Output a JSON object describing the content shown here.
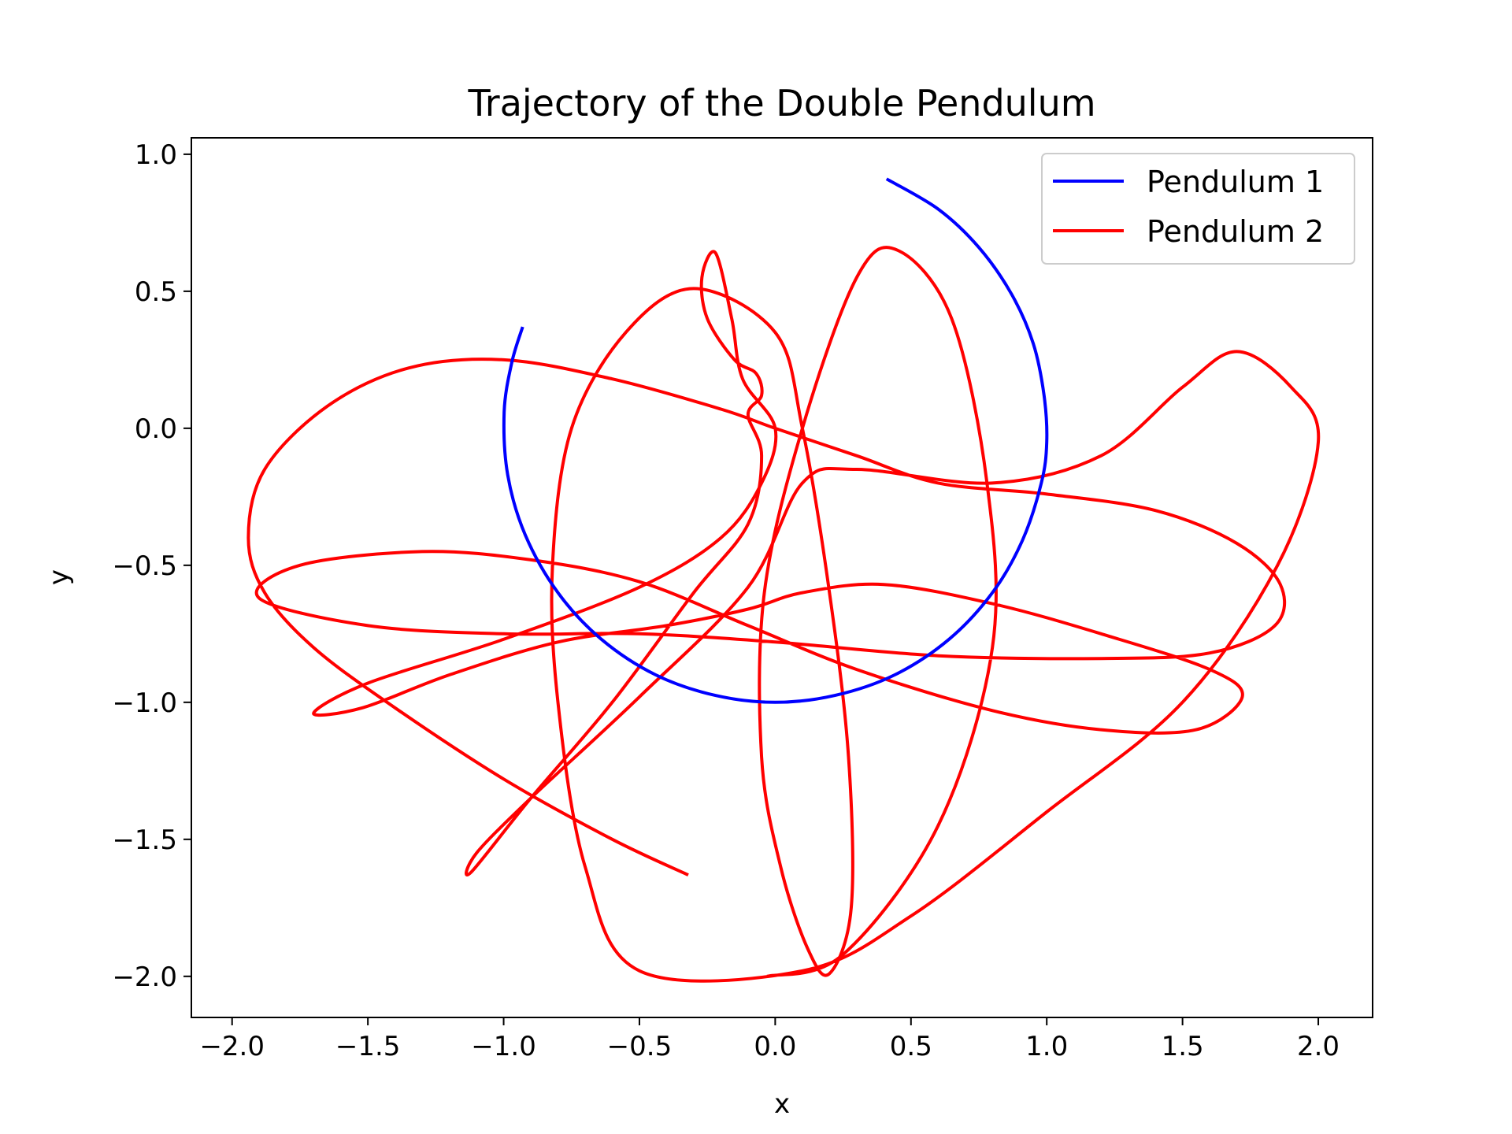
{
  "chart_data": {
    "type": "line",
    "title": "Trajectory of the Double Pendulum",
    "xlabel": "x",
    "ylabel": "y",
    "xlim": [
      -2.15,
      2.2
    ],
    "ylim": [
      -2.15,
      1.06
    ],
    "xticks": [
      -2.0,
      -1.5,
      -1.0,
      -0.5,
      0.0,
      0.5,
      1.0,
      1.5,
      2.0
    ],
    "xtick_labels": [
      "−2.0",
      "−1.5",
      "−1.0",
      "−0.5",
      "0.0",
      "0.5",
      "1.0",
      "1.5",
      "2.0"
    ],
    "yticks": [
      1.0,
      0.5,
      0.0,
      -0.5,
      -1.0,
      -1.5,
      -2.0
    ],
    "ytick_labels": [
      "1.0",
      "0.5",
      "0.0",
      "−0.5",
      "−1.0",
      "−1.5",
      "−2.0"
    ],
    "grid": false,
    "legend": "top-right",
    "series": [
      {
        "name": "Pendulum 1",
        "color": "#0000ff",
        "points": [
          [
            0.41,
            0.91
          ],
          [
            0.6,
            0.8
          ],
          [
            0.75,
            0.66
          ],
          [
            0.87,
            0.49
          ],
          [
            0.95,
            0.31
          ],
          [
            0.99,
            0.12
          ],
          [
            1.0,
            -0.05
          ],
          [
            0.98,
            -0.2
          ],
          [
            0.91,
            -0.41
          ],
          [
            0.8,
            -0.6
          ],
          [
            0.64,
            -0.77
          ],
          [
            0.44,
            -0.9
          ],
          [
            0.22,
            -0.975
          ],
          [
            0.0,
            -1.0
          ],
          [
            -0.22,
            -0.975
          ],
          [
            -0.44,
            -0.9
          ],
          [
            -0.64,
            -0.77
          ],
          [
            -0.8,
            -0.6
          ],
          [
            -0.92,
            -0.39
          ],
          [
            -0.985,
            -0.17
          ],
          [
            -0.998,
            0.06
          ],
          [
            -0.97,
            0.24
          ],
          [
            -0.93,
            0.37
          ]
        ]
      },
      {
        "name": "Pendulum 2",
        "color": "#ff0000",
        "points": [
          [
            -0.32,
            -1.63
          ],
          [
            -0.6,
            -1.5
          ],
          [
            -1.0,
            -1.28
          ],
          [
            -1.4,
            -1.02
          ],
          [
            -1.7,
            -0.8
          ],
          [
            -1.88,
            -0.6
          ],
          [
            -1.94,
            -0.4
          ],
          [
            -1.88,
            -0.15
          ],
          [
            -1.65,
            0.08
          ],
          [
            -1.35,
            0.22
          ],
          [
            -1.0,
            0.25
          ],
          [
            -0.6,
            0.18
          ],
          [
            -0.2,
            0.07
          ],
          [
            0.0,
            0.0
          ],
          [
            0.3,
            -0.1
          ],
          [
            0.6,
            -0.2
          ],
          [
            1.0,
            -0.24
          ],
          [
            1.4,
            -0.3
          ],
          [
            1.7,
            -0.42
          ],
          [
            1.86,
            -0.57
          ],
          [
            1.84,
            -0.72
          ],
          [
            1.6,
            -0.82
          ],
          [
            1.2,
            -0.84
          ],
          [
            0.6,
            -0.83
          ],
          [
            0.0,
            -0.78
          ],
          [
            -0.5,
            -0.75
          ],
          [
            -1.0,
            -0.75
          ],
          [
            -1.5,
            -0.72
          ],
          [
            -1.9,
            -0.62
          ],
          [
            -1.75,
            -0.5
          ],
          [
            -1.3,
            -0.45
          ],
          [
            -0.9,
            -0.48
          ],
          [
            -0.5,
            -0.56
          ],
          [
            -0.1,
            -0.72
          ],
          [
            0.3,
            -0.88
          ],
          [
            0.8,
            -1.03
          ],
          [
            1.2,
            -1.1
          ],
          [
            1.55,
            -1.1
          ],
          [
            1.72,
            -0.98
          ],
          [
            1.6,
            -0.88
          ],
          [
            1.2,
            -0.75
          ],
          [
            0.8,
            -0.64
          ],
          [
            0.4,
            -0.57
          ],
          [
            0.1,
            -0.6
          ],
          [
            -0.1,
            -0.66
          ],
          [
            -0.4,
            -0.72
          ],
          [
            -0.8,
            -0.78
          ],
          [
            -1.2,
            -0.9
          ],
          [
            -1.52,
            -1.02
          ],
          [
            -1.7,
            -1.04
          ],
          [
            -1.5,
            -0.93
          ],
          [
            -1.0,
            -0.77
          ],
          [
            -0.5,
            -0.58
          ],
          [
            -0.2,
            -0.4
          ],
          [
            -0.05,
            -0.2
          ],
          [
            0.0,
            0.0
          ],
          [
            -0.12,
            0.18
          ],
          [
            -0.16,
            0.4
          ],
          [
            -0.22,
            0.64
          ],
          [
            -0.27,
            0.55
          ],
          [
            -0.25,
            0.4
          ],
          [
            -0.15,
            0.25
          ],
          [
            -0.07,
            0.2
          ],
          [
            -0.05,
            0.12
          ],
          [
            -0.1,
            0.05
          ],
          [
            -0.05,
            -0.1
          ],
          [
            -0.1,
            -0.35
          ],
          [
            -0.3,
            -0.6
          ],
          [
            -0.6,
            -1.0
          ],
          [
            -0.9,
            -1.35
          ],
          [
            -1.12,
            -1.62
          ],
          [
            -1.1,
            -1.55
          ],
          [
            -0.9,
            -1.35
          ],
          [
            -0.5,
            -0.98
          ],
          [
            -0.1,
            -0.58
          ],
          [
            0.1,
            -0.2
          ],
          [
            0.3,
            -0.15
          ],
          [
            0.8,
            -0.2
          ],
          [
            1.2,
            -0.1
          ],
          [
            1.5,
            0.15
          ],
          [
            1.7,
            0.28
          ],
          [
            1.9,
            0.15
          ],
          [
            2.0,
            -0.05
          ],
          [
            1.85,
            -0.5
          ],
          [
            1.5,
            -1.0
          ],
          [
            1.0,
            -1.4
          ],
          [
            0.5,
            -1.78
          ],
          [
            0.1,
            -1.98
          ],
          [
            -0.5,
            -1.98
          ],
          [
            -0.7,
            -1.6
          ],
          [
            -0.8,
            -1.0
          ],
          [
            -0.82,
            -0.5
          ],
          [
            -0.75,
            0.0
          ],
          [
            -0.55,
            0.35
          ],
          [
            -0.3,
            0.51
          ],
          [
            0.0,
            0.35
          ],
          [
            0.1,
            0.0
          ],
          [
            0.2,
            -0.6
          ],
          [
            0.27,
            -1.2
          ],
          [
            0.28,
            -1.75
          ],
          [
            0.2,
            -1.99
          ],
          [
            0.12,
            -1.9
          ],
          [
            0.02,
            -1.6
          ],
          [
            -0.05,
            -1.2
          ],
          [
            -0.04,
            -0.6
          ],
          [
            0.1,
            0.0
          ],
          [
            0.3,
            0.55
          ],
          [
            0.45,
            0.65
          ],
          [
            0.65,
            0.4
          ],
          [
            0.78,
            -0.2
          ],
          [
            0.8,
            -0.8
          ],
          [
            0.6,
            -1.45
          ],
          [
            0.25,
            -1.92
          ],
          [
            -0.03,
            -2.0
          ]
        ]
      }
    ]
  }
}
